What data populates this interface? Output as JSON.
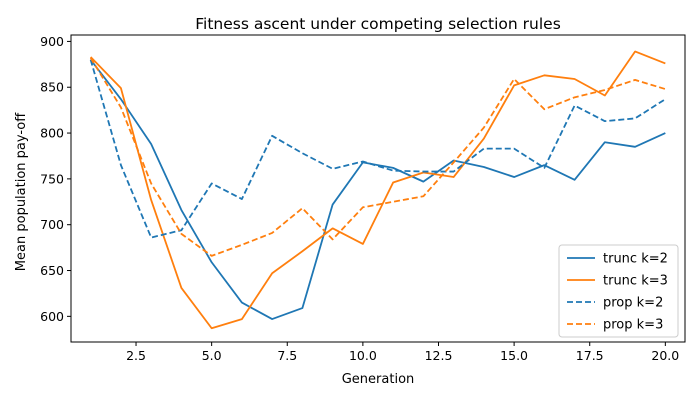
{
  "chart_data": {
    "type": "line",
    "title": "Fitness ascent under competing selection rules",
    "xlabel": "Generation",
    "ylabel": "Mean population pay-off",
    "xlim": [
      0.35,
      20.65
    ],
    "ylim": [
      572,
      907
    ],
    "xticks": [
      2.5,
      5.0,
      7.5,
      10.0,
      12.5,
      15.0,
      17.5,
      20.0
    ],
    "xtick_labels": [
      "2.5",
      "5.0",
      "7.5",
      "10.0",
      "12.5",
      "15.0",
      "17.5",
      "20.0"
    ],
    "yticks": [
      600,
      650,
      700,
      750,
      800,
      850,
      900
    ],
    "ytick_labels": [
      "600",
      "650",
      "700",
      "750",
      "800",
      "850",
      "900"
    ],
    "grid": false,
    "legend_position": "lower-right",
    "x": [
      1,
      2,
      3,
      4,
      5,
      6,
      7,
      8,
      9,
      10,
      11,
      12,
      13,
      14,
      15,
      16,
      17,
      18,
      19,
      20
    ],
    "series": [
      {
        "name": "trunc k=2",
        "color": "#1f77b4",
        "dash": "solid",
        "values": [
          880,
          837,
          788,
          716,
          659,
          615,
          597,
          609,
          722,
          768,
          762,
          747,
          770,
          763,
          752,
          765,
          749,
          790,
          785,
          800
        ]
      },
      {
        "name": "trunc k=3",
        "color": "#ff7f0e",
        "dash": "solid",
        "values": [
          883,
          849,
          727,
          631,
          587,
          597,
          647,
          671,
          696,
          679,
          746,
          757,
          752,
          794,
          852,
          863,
          859,
          841,
          889,
          876
        ]
      },
      {
        "name": "prop k=2",
        "color": "#1f77b4",
        "dash": "dashed",
        "values": [
          880,
          765,
          686,
          694,
          745,
          728,
          797,
          778,
          761,
          769,
          759,
          758,
          758,
          783,
          783,
          762,
          830,
          813,
          816,
          837
        ]
      },
      {
        "name": "prop k=3",
        "color": "#ff7f0e",
        "dash": "dashed",
        "values": [
          882,
          828,
          745,
          690,
          666,
          678,
          691,
          718,
          684,
          719,
          725,
          731,
          768,
          806,
          859,
          826,
          839,
          847,
          858,
          848
        ]
      }
    ]
  }
}
